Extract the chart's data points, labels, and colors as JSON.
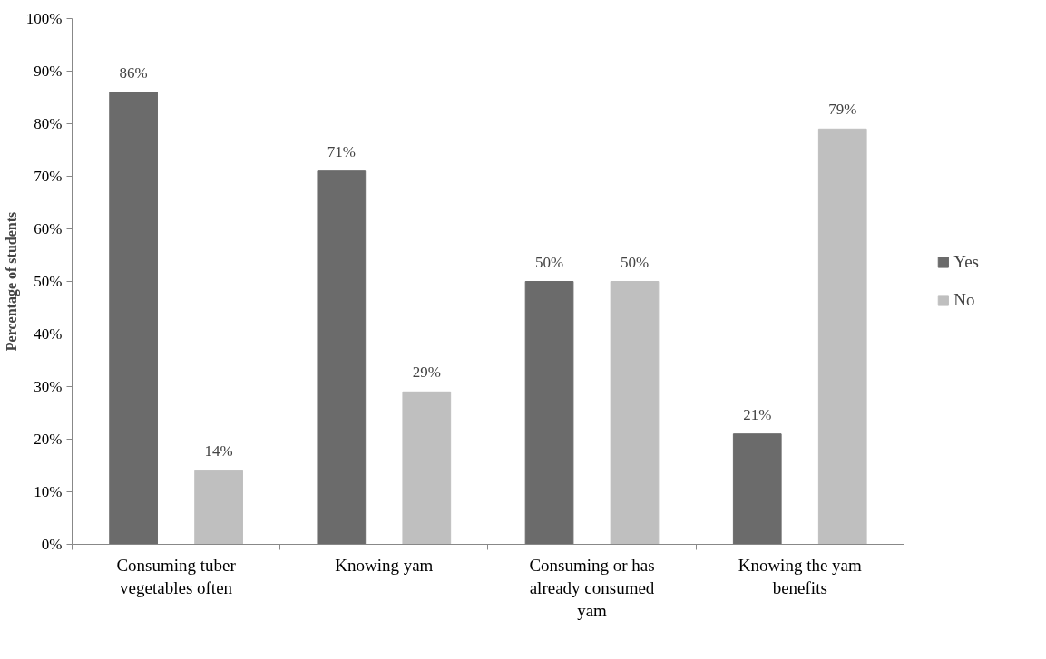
{
  "chart_data": {
    "type": "bar",
    "ylabel": "Percentage of students",
    "categories": [
      "Consuming tuber vegetables often",
      "Knowing yam",
      "Consuming or has already consumed yam",
      "Knowing the yam benefits"
    ],
    "series": [
      {
        "name": "Yes",
        "color": "#6b6b6b",
        "values": [
          86,
          71,
          50,
          21
        ],
        "value_labels": [
          "86%",
          "71%",
          "50%",
          "21%"
        ]
      },
      {
        "name": "No",
        "color": "#bfbfbf",
        "values": [
          14,
          29,
          50,
          79
        ],
        "value_labels": [
          "14%",
          "29%",
          "50%",
          "79%"
        ]
      }
    ],
    "ylim": [
      0,
      100
    ],
    "yticks": [
      {
        "value": 0,
        "label": "0%"
      },
      {
        "value": 10,
        "label": "10%"
      },
      {
        "value": 20,
        "label": "20%"
      },
      {
        "value": 30,
        "label": "30%"
      },
      {
        "value": 40,
        "label": "40%"
      },
      {
        "value": 50,
        "label": "50%"
      },
      {
        "value": 60,
        "label": "60%"
      },
      {
        "value": 70,
        "label": "70%"
      },
      {
        "value": 80,
        "label": "80%"
      },
      {
        "value": 90,
        "label": "90%"
      },
      {
        "value": 100,
        "label": "100%"
      }
    ],
    "grid": false,
    "legend": "right"
  }
}
